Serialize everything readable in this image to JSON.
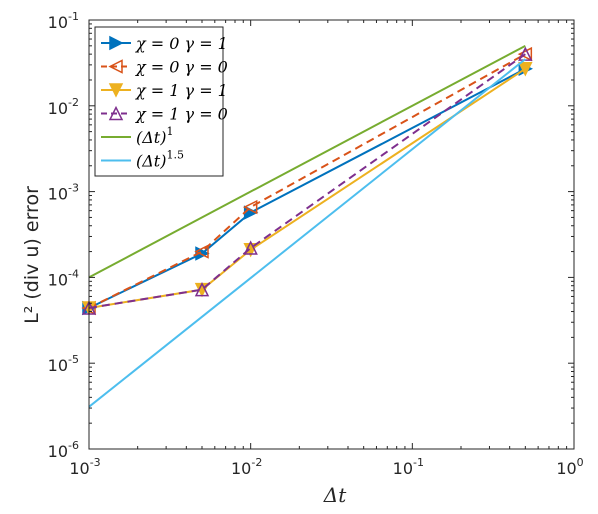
{
  "chart_data": {
    "type": "line",
    "x_scale": "log",
    "y_scale": "log",
    "xlim": [
      0.001,
      1
    ],
    "ylim": [
      1e-06,
      0.1
    ],
    "xlabel": "Δt",
    "ylabel": "L² (div u) error",
    "legend_position": "top-left",
    "grid": false,
    "x_ticks": [
      {
        "base": "10",
        "exp": "-3",
        "value": 0.001
      },
      {
        "base": "10",
        "exp": "-2",
        "value": 0.01
      },
      {
        "base": "10",
        "exp": "-1",
        "value": 0.1
      },
      {
        "base": "10",
        "exp": "0",
        "value": 1
      }
    ],
    "y_ticks": [
      {
        "base": "10",
        "exp": "-6",
        "value": 1e-06
      },
      {
        "base": "10",
        "exp": "-5",
        "value": 1e-05
      },
      {
        "base": "10",
        "exp": "-4",
        "value": 0.0001
      },
      {
        "base": "10",
        "exp": "-3",
        "value": 0.001
      },
      {
        "base": "10",
        "exp": "-2",
        "value": 0.01
      },
      {
        "base": "10",
        "exp": "-1",
        "value": 0.1
      }
    ],
    "series": [
      {
        "name": "χ = 0 γ = 1",
        "color": "#0072BD",
        "dash": false,
        "marker": "triangle-right",
        "x": [
          0.001,
          0.005,
          0.01,
          0.5
        ],
        "y": [
          4.4e-05,
          0.00019,
          0.00057,
          0.027
        ]
      },
      {
        "name": "χ = 0 γ = 0",
        "color": "#D95319",
        "dash": true,
        "marker": "triangle-left-open",
        "x": [
          0.001,
          0.005,
          0.01,
          0.5
        ],
        "y": [
          4.4e-05,
          0.0002,
          0.00066,
          0.04
        ]
      },
      {
        "name": "χ = 1 γ = 1",
        "color": "#EDB120",
        "dash": false,
        "marker": "triangle-down",
        "x": [
          0.001,
          0.005,
          0.01,
          0.5
        ],
        "y": [
          4.4e-05,
          7.2e-05,
          0.00021,
          0.027
        ]
      },
      {
        "name": "χ = 1 γ = 0",
        "color": "#7E2F8E",
        "dash": true,
        "marker": "triangle-up-open",
        "x": [
          0.001,
          0.005,
          0.01,
          0.5
        ],
        "y": [
          4.4e-05,
          7.2e-05,
          0.00022,
          0.04
        ]
      },
      {
        "name": "(Δt)",
        "name_exp": "1",
        "color": "#77AC30",
        "dash": false,
        "marker": "none",
        "x": [
          0.001,
          0.5
        ],
        "y": [
          0.0001,
          0.05
        ]
      },
      {
        "name": "(Δt)",
        "name_exp": "1.5",
        "color": "#4DBEEE",
        "dash": false,
        "marker": "none",
        "x": [
          0.001,
          0.5
        ],
        "y": [
          3.1e-06,
          0.035
        ]
      }
    ]
  }
}
